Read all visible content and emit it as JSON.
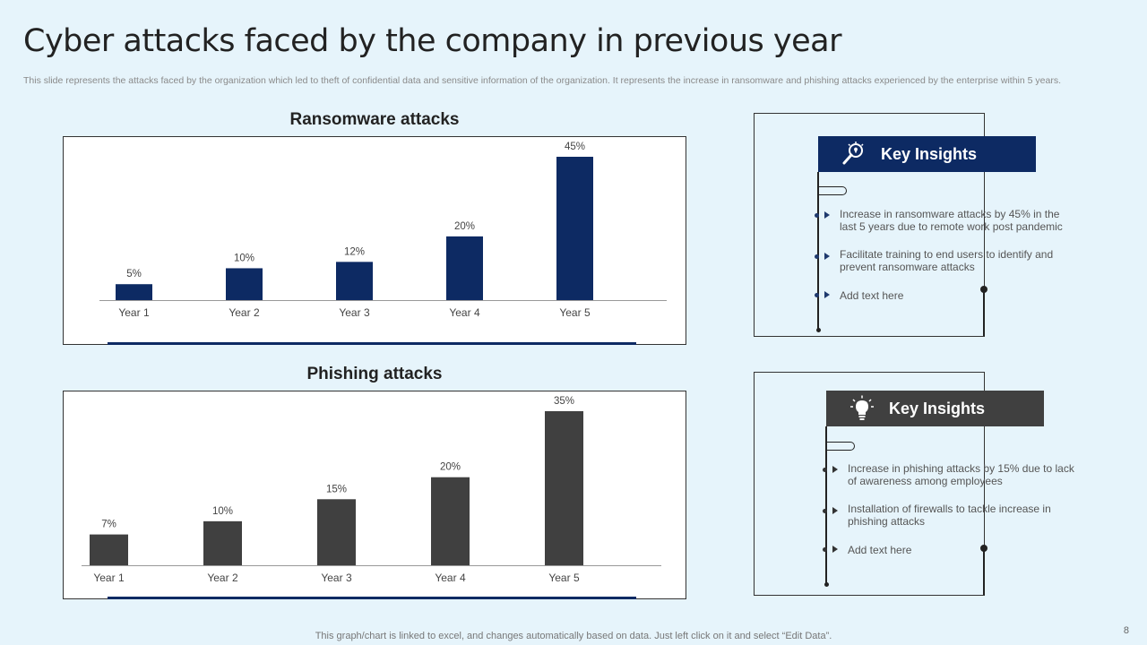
{
  "slide": {
    "title": "Cyber attacks faced by the company in previous year",
    "subtitle": "This slide represents the attacks faced by the organization which led to theft of confidential data and sensitive information of the organization. It represents the increase in ransomware and phishing attacks experienced by the enterprise within 5 years.",
    "footer": "This graph/chart is linked to excel,  and changes automatically based on data. Just left click on it and select “Edit Data”.",
    "page_number": "8"
  },
  "chart_data": [
    {
      "type": "bar",
      "title": "Ransomware attacks",
      "categories": [
        "Year 1",
        "Year 2",
        "Year 3",
        "Year 4",
        "Year 5"
      ],
      "values": [
        5,
        10,
        12,
        20,
        45
      ],
      "data_labels": [
        "5%",
        "10%",
        "12%",
        "20%",
        "45%"
      ],
      "ylim": [
        0,
        45
      ],
      "color": "#0d2a63",
      "grid": false
    },
    {
      "type": "bar",
      "title": "Phishing attacks",
      "categories": [
        "Year 1",
        "Year 2",
        "Year 3",
        "Year 4",
        "Year 5"
      ],
      "values": [
        7,
        10,
        15,
        20,
        35
      ],
      "data_labels": [
        "7%",
        "10%",
        "15%",
        "20%",
        "35%"
      ],
      "ylim": [
        0,
        35
      ],
      "color": "#404040",
      "grid": false
    }
  ],
  "insights": [
    {
      "header": "Key Insights",
      "header_color": "#0d2a63",
      "icon": "magnifier-lightbulb-icon",
      "items": [
        "Increase in ransomware attacks by 45% in the last 5 years due to remote work post pandemic",
        "Facilitate training to end users to identify and prevent ransomware attacks",
        "Add text here"
      ]
    },
    {
      "header": "Key Insights",
      "header_color": "#404040",
      "icon": "lightbulb-icon",
      "items": [
        "Increase in phishing attacks by 15% due to lack of awareness among employees",
        "Installation of firewalls to tackle increase in phishing attacks",
        "Add text here"
      ]
    }
  ]
}
